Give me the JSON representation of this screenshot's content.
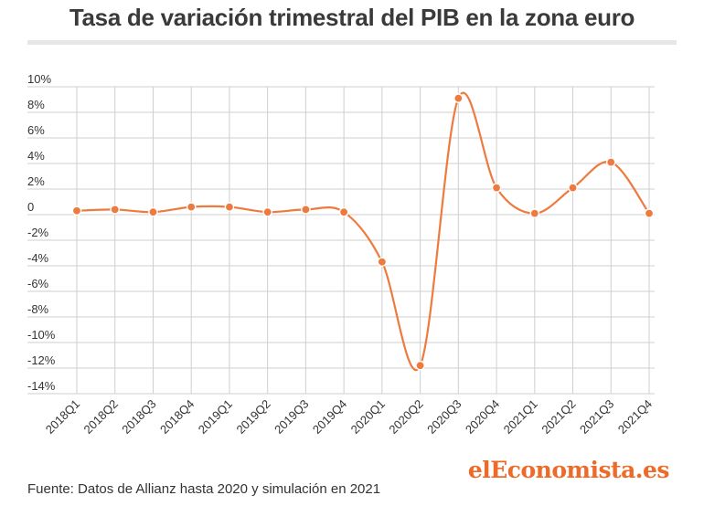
{
  "chart_data": {
    "type": "line",
    "title": "Tasa de variación trimestral del PIB en la zona euro",
    "categories": [
      "2018Q1",
      "2018Q2",
      "2018Q3",
      "2018Q4",
      "2019Q1",
      "2019Q2",
      "2019Q3",
      "2019Q4",
      "2020Q1",
      "2020Q2",
      "2020Q3",
      "2020Q4",
      "2021Q1",
      "2021Q2",
      "2021Q3",
      "2021Q4"
    ],
    "values": [
      0.3,
      0.4,
      0.2,
      0.6,
      0.6,
      0.2,
      0.4,
      0.2,
      -3.7,
      -11.8,
      9.1,
      2.1,
      0.1,
      2.1,
      4.1,
      0.1
    ],
    "y_ticks": [
      10,
      8,
      6,
      4,
      2,
      0,
      -2,
      -4,
      -6,
      -8,
      -10,
      -12,
      -14
    ],
    "y_tick_labels": [
      "10%",
      "8%",
      "6%",
      "4%",
      "2%",
      "0",
      "-2%",
      "-4%",
      "-6%",
      "-8%",
      "-10%",
      "-12%",
      "-14%"
    ],
    "ylim": [
      -14,
      10
    ],
    "xlabel": "",
    "ylabel": "",
    "grid": true,
    "line_color": "#ee7a3e",
    "grid_color": "#cfcfcf"
  },
  "footer": {
    "source": "Fuente: Datos de Allianz hasta 2020 y simulación en 2021",
    "logo": "elEconomista.es"
  }
}
